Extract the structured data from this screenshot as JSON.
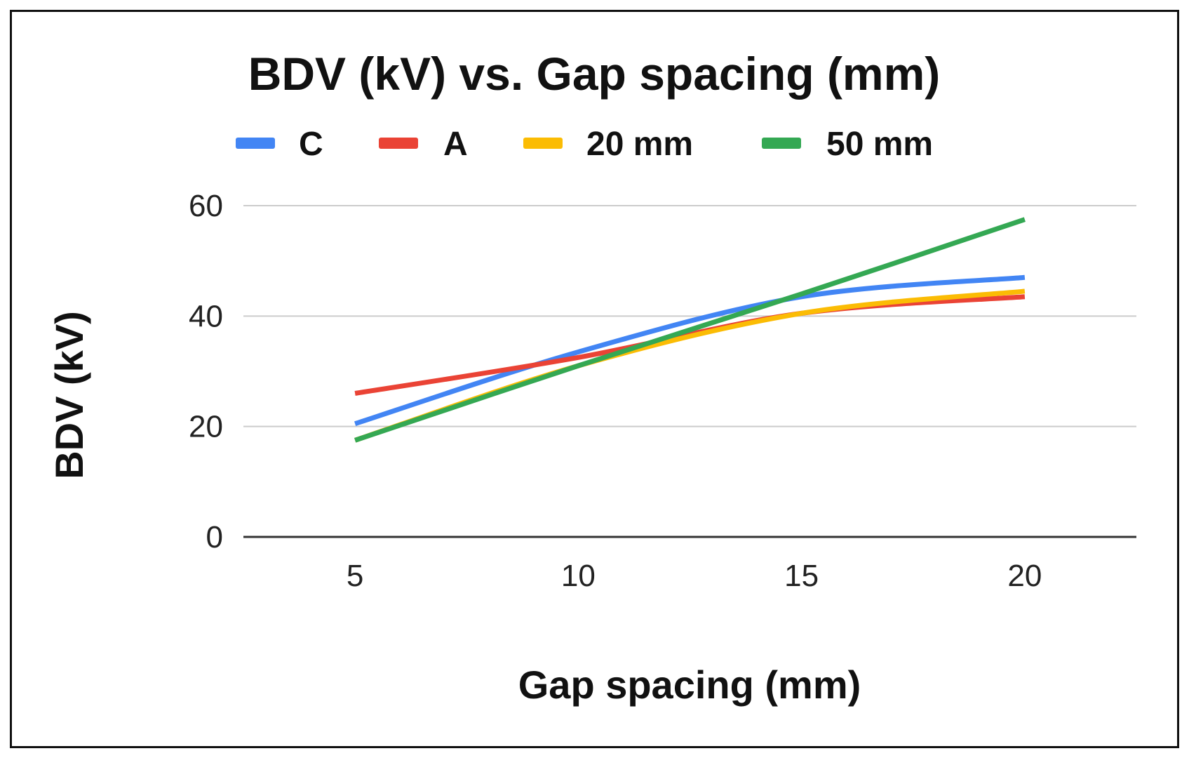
{
  "chart_data": {
    "type": "line",
    "title": "BDV (kV) vs. Gap spacing (mm)",
    "xlabel": "Gap spacing (mm)",
    "ylabel": "BDV (kV)",
    "x": [
      5,
      10,
      15,
      20
    ],
    "x_ticks": [
      "5",
      "10",
      "15",
      "20"
    ],
    "y_ticks": [
      "0",
      "20",
      "40",
      "60"
    ],
    "xlim": [
      2.5,
      22.5
    ],
    "ylim": [
      0,
      60
    ],
    "grid": true,
    "legend_position": "top",
    "series": [
      {
        "name": "C",
        "color": "#4285f4",
        "values": [
          20.5,
          33.5,
          43.5,
          47
        ]
      },
      {
        "name": "A",
        "color": "#ea4335",
        "values": [
          26,
          32.5,
          40.5,
          43.5
        ]
      },
      {
        "name": "20 mm",
        "color": "#fbbc04",
        "values": [
          17.5,
          31,
          40.5,
          44.5
        ]
      },
      {
        "name": "50 mm",
        "color": "#34a853",
        "values": [
          17.5,
          31,
          44,
          57.5
        ]
      }
    ]
  }
}
